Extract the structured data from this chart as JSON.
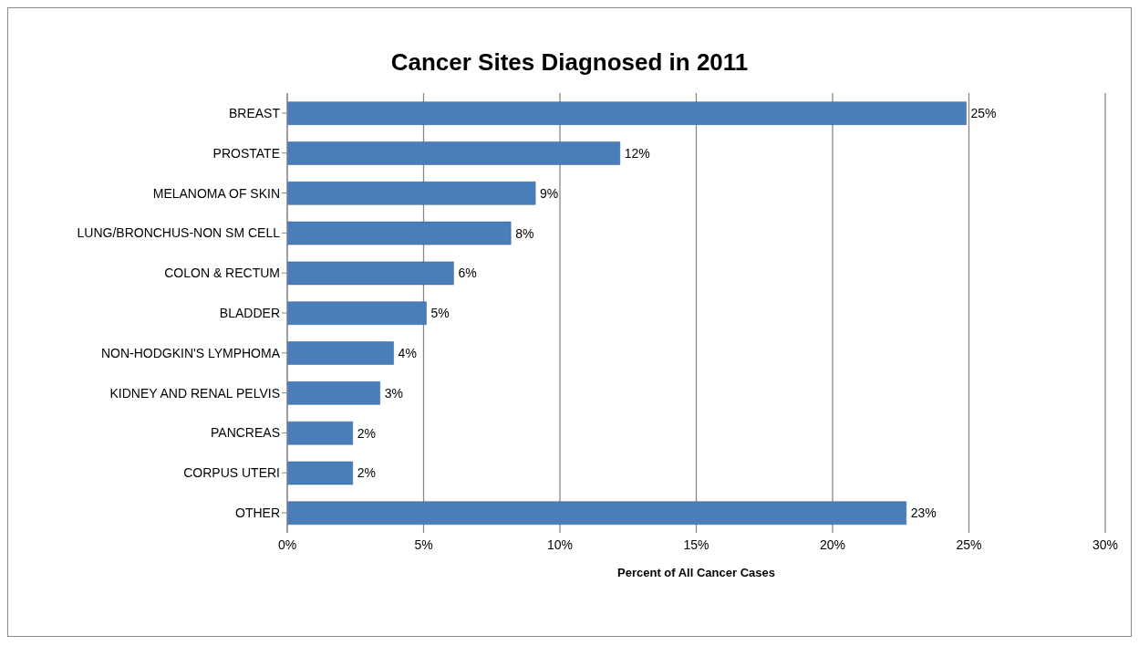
{
  "chart_data": {
    "type": "bar",
    "orientation": "horizontal",
    "title": "Cancer Sites Diagnosed in 2011",
    "xlabel": "Percent of All Cancer Cases",
    "categories": [
      "BREAST",
      "PROSTATE",
      "MELANOMA OF SKIN",
      "LUNG/BRONCHUS-NON SM CELL",
      "COLON & RECTUM",
      "BLADDER",
      "NON-HODGKIN'S LYMPHOMA",
      "KIDNEY AND RENAL PELVIS",
      "PANCREAS",
      "CORPUS UTERI",
      "OTHER"
    ],
    "values": [
      24.9,
      12.2,
      9.1,
      8.2,
      6.1,
      5.1,
      3.9,
      3.4,
      2.4,
      2.4,
      22.7
    ],
    "value_labels": [
      "25%",
      "12%",
      "9%",
      "8%",
      "6%",
      "5%",
      "4%",
      "3%",
      "2%",
      "2%",
      "23%"
    ],
    "color": "#4a7ebb",
    "xlim": [
      0,
      30
    ],
    "xticks": [
      {
        "value": 0,
        "label": "0%"
      },
      {
        "value": 5,
        "label": "5%"
      },
      {
        "value": 10,
        "label": "10%"
      },
      {
        "value": 15,
        "label": "15%"
      },
      {
        "value": 20,
        "label": "20%"
      },
      {
        "value": 25,
        "label": "25%"
      },
      {
        "value": 30,
        "label": "30%"
      }
    ],
    "grid": "x",
    "legend": false
  }
}
